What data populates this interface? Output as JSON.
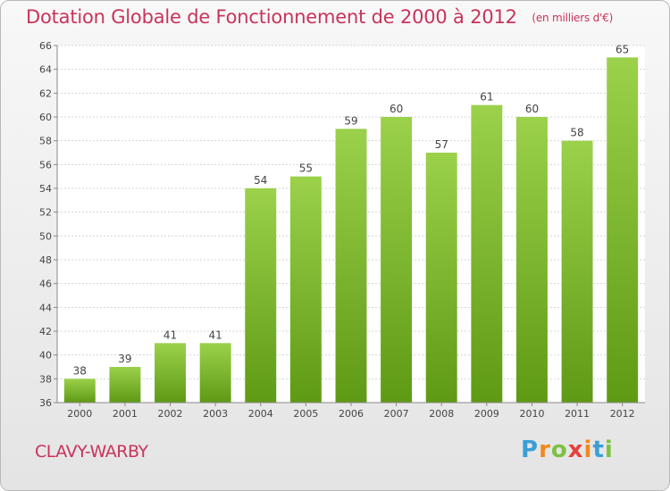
{
  "header": {
    "title": "Dotation Globale de Fonctionnement de 2000 à 2012",
    "unit": "(en milliers d'€)"
  },
  "footer": {
    "commune": "CLAVY-WARBY",
    "logo": "Proxiti"
  },
  "colors": {
    "accent": "#c8345b",
    "bar_top": "#9bd14b",
    "bar_bottom": "#5f9a14"
  },
  "chart_data": {
    "type": "bar",
    "title": "Dotation Globale de Fonctionnement de 2000 à 2012",
    "subtitle": "(en milliers d'€)",
    "xlabel": "",
    "ylabel": "",
    "categories": [
      "2000",
      "2001",
      "2002",
      "2003",
      "2004",
      "2005",
      "2006",
      "2007",
      "2008",
      "2009",
      "2010",
      "2011",
      "2012"
    ],
    "values": [
      38,
      39,
      41,
      41,
      54,
      55,
      59,
      60,
      57,
      61,
      60,
      58,
      65
    ],
    "ylim": [
      36,
      66
    ],
    "yticks": [
      36,
      38,
      40,
      42,
      44,
      46,
      48,
      50,
      52,
      54,
      56,
      58,
      60,
      62,
      64,
      66
    ],
    "grid": true,
    "data_labels": true
  }
}
